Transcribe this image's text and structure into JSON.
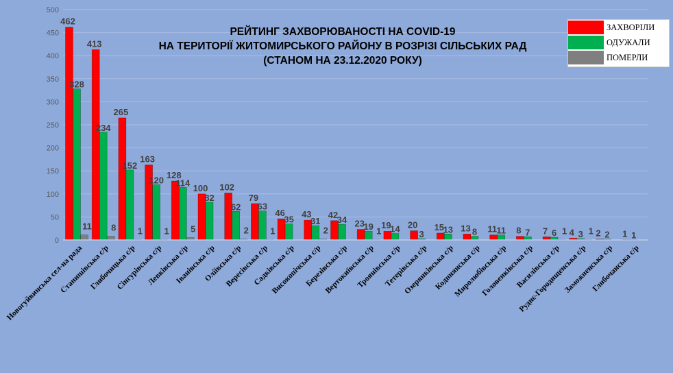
{
  "chart_data": {
    "type": "bar",
    "title": [
      "РЕЙТИНГ ЗАХВОРЮВАНОСТІ НА COVID-19",
      "НА ТЕРИТОРІЇ ЖИТОМИРСЬКОГО РАЙОНУ В РОЗРІЗІ СІЛЬСЬКИХ РАД",
      "(СТАНОМ НА 23.12.2020 РОКУ)"
    ],
    "ylim": [
      0,
      500
    ],
    "yticks": [
      0,
      50,
      100,
      150,
      200,
      250,
      300,
      350,
      400,
      450,
      500
    ],
    "grid": true,
    "legend_position": "top-right",
    "categories": [
      "Новогуйвинська сел-на рада",
      "Станишівська с/р",
      "Глибочицька с/р",
      "Сінгурівська с/р",
      "Левківська с/р",
      "Іванівська с/р",
      "Оліївська с/р",
      "Вересівська с/р",
      "Садківська с/р",
      "Високопічська с/р",
      "Березівська с/р",
      "Вертокиївська с/р",
      "Троянівська с/р",
      "Тетерівська  с/р",
      "Озерянківська с/р",
      "Кодннянська с/р",
      "Миролюбівська с/р",
      "Головенківська с/р",
      "Василівська с/р",
      "Руднє-Городищенська с/р",
      "Заможненська с/р",
      "Глибочанська с/р"
    ],
    "series": [
      {
        "name": "ЗАХВОРІЛИ",
        "color": "#ff0000",
        "values": [
          462,
          413,
          265,
          163,
          128,
          100,
          102,
          79,
          46,
          43,
          42,
          23,
          19,
          20,
          15,
          13,
          11,
          8,
          7,
          4,
          2,
          1
        ]
      },
      {
        "name": "ОДУЖАЛИ",
        "color": "#00b050",
        "values": [
          328,
          234,
          152,
          120,
          114,
          82,
          62,
          63,
          35,
          31,
          34,
          19,
          14,
          3,
          13,
          8,
          11,
          7,
          6,
          3,
          2,
          1
        ]
      },
      {
        "name": "ПОМЕРЛИ",
        "color": "#7f7f7f",
        "values": [
          11,
          8,
          1,
          1,
          5,
          null,
          2,
          1,
          null,
          2,
          null,
          1,
          null,
          null,
          null,
          null,
          null,
          null,
          1,
          1,
          null,
          null
        ]
      }
    ]
  }
}
